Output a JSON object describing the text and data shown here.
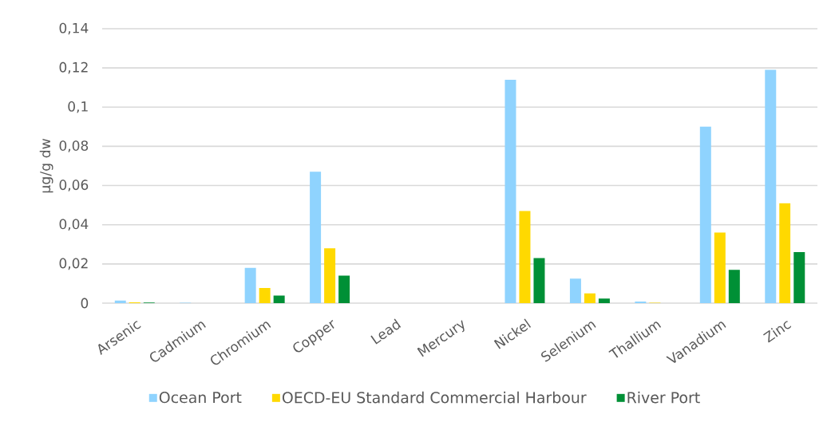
{
  "chart_data": {
    "type": "bar",
    "ylabel": "µg/g dw",
    "categories": [
      "Arsenic",
      "Cadmium",
      "Chromium",
      "Copper",
      "Lead",
      "Mercury",
      "Nickel",
      "Selenium",
      "Thallium",
      "Vanadium",
      "Zinc"
    ],
    "series": [
      {
        "name": "Ocean Port",
        "color": "#8fd3fe",
        "values": [
          0.0013,
          0.0002,
          0.018,
          0.067,
          0,
          0,
          0.114,
          0.0125,
          0.0008,
          0.09,
          0.119
        ]
      },
      {
        "name": "OECD-EU Standard Commercial Harbour",
        "color": "#ffd900",
        "values": [
          0.0004,
          0,
          0.0077,
          0.028,
          0,
          0,
          0.047,
          0.005,
          0.0002,
          0.036,
          0.051
        ]
      },
      {
        "name": "River Port",
        "color": "#009036",
        "values": [
          0.0003,
          0,
          0.0039,
          0.014,
          0,
          0,
          0.023,
          0.0023,
          0,
          0.017,
          0.026
        ]
      }
    ],
    "ylim": [
      0,
      0.14
    ],
    "yticks": [
      0,
      {
        "value": 0.02,
        "label": "0,02"
      },
      {
        "value": 0.04,
        "label": "0,04"
      },
      {
        "value": 0.06,
        "label": "0,06"
      },
      {
        "value": 0.08,
        "label": "0,08"
      },
      {
        "value": 0.1,
        "label": "0,1"
      },
      {
        "value": 0.12,
        "label": "0,12"
      },
      {
        "value": 0.14,
        "label": "0,14"
      }
    ],
    "grid": "y",
    "legend": "bottom"
  }
}
